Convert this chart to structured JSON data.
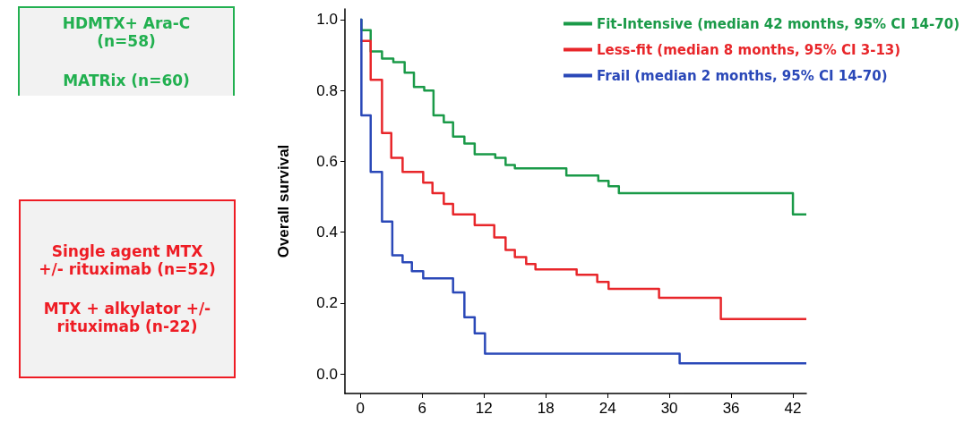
{
  "chart_data": [
    {
      "type": "other",
      "color": "#22b050",
      "annotations": [
        "HDMTX+ Ara-C (n=58)",
        "MATRix (n=60)"
      ]
    },
    {
      "type": "other",
      "color": "#ee1c24",
      "annotations": [
        "Single agent MTX +/- rituximab (n=52)",
        "MTX + alkylator +/- rituximab  (n-22)"
      ]
    },
    {
      "type": "step",
      "ylabel": "Overall survival",
      "xlim": [
        -1.5,
        43.3
      ],
      "xticks": [
        0,
        6,
        12,
        18,
        24,
        30,
        36,
        42
      ],
      "ylim": [
        -0.055,
        1.03
      ],
      "yticks": [
        {
          "value": 0,
          "label": "0.0"
        },
        0.2,
        0.4,
        0.6,
        0.8,
        {
          "value": 1,
          "label": "1.0"
        }
      ],
      "grid": false,
      "legend": "top right",
      "marker": "none",
      "line_style": "solid",
      "series": [
        {
          "name": "Fit-Intensive (median 42 months, 95% CI 14-70)",
          "color": "#1a9a48",
          "x": [
            0,
            0.1,
            1,
            2.1,
            3.2,
            4.3,
            5.2,
            6.2,
            7.1,
            8.1,
            9,
            10.1,
            11.1,
            13.1,
            14.1,
            15,
            20,
            23.1,
            24.1,
            25.1,
            42,
            43.3
          ],
          "values": [
            1.0,
            0.97,
            0.91,
            0.89,
            0.88,
            0.85,
            0.81,
            0.8,
            0.73,
            0.71,
            0.67,
            0.65,
            0.62,
            0.61,
            0.59,
            0.58,
            0.56,
            0.545,
            0.53,
            0.51,
            0.45,
            0.45
          ]
        },
        {
          "name": "Less-fit (median 8 months, 95% CI 3-13)",
          "color": "#e8262a",
          "x": [
            0,
            1,
            2.1,
            3,
            4.1,
            6.1,
            7,
            8.1,
            9,
            11.1,
            13,
            14.1,
            15,
            16.1,
            17,
            21,
            23,
            24.1,
            29,
            35,
            43.3
          ],
          "values": [
            0.94,
            0.83,
            0.68,
            0.61,
            0.57,
            0.54,
            0.51,
            0.48,
            0.45,
            0.42,
            0.385,
            0.35,
            0.33,
            0.31,
            0.295,
            0.28,
            0.26,
            0.24,
            0.215,
            0.155,
            0.155
          ]
        },
        {
          "name": "Frail (median 2 months, 95% CI 14-70)",
          "color": "#2a48b8",
          "x": [
            0,
            0.1,
            1,
            2.1,
            3.1,
            4.1,
            5,
            6.1,
            9,
            10.1,
            11.1,
            12.1,
            31,
            43.3
          ],
          "values": [
            1.0,
            0.73,
            0.57,
            0.43,
            0.335,
            0.315,
            0.29,
            0.27,
            0.23,
            0.16,
            0.115,
            0.057,
            0.03,
            0.03
          ]
        }
      ]
    }
  ]
}
